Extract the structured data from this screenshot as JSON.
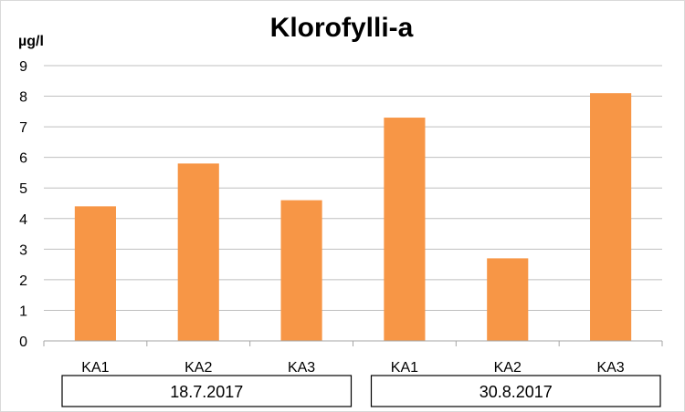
{
  "chart_data": {
    "type": "bar",
    "title": "Klorofylli-a",
    "ylabel": "µg/l",
    "xlabel": "",
    "ylim": [
      0,
      9
    ],
    "yticks": [
      "0",
      "1",
      "2",
      "3",
      "4",
      "5",
      "6",
      "7",
      "8",
      "9"
    ],
    "categories": [
      "KA1",
      "KA2",
      "KA3",
      "KA1",
      "KA2",
      "KA3"
    ],
    "groups": [
      {
        "label": "18.7.2017",
        "categories": [
          "KA1",
          "KA2",
          "KA3"
        ]
      },
      {
        "label": "30.8.2017",
        "categories": [
          "KA1",
          "KA2",
          "KA3"
        ]
      }
    ],
    "values": [
      4.4,
      5.8,
      4.6,
      7.3,
      2.7,
      8.1
    ],
    "bar_color": "#f79646",
    "grid": true,
    "legend": "none"
  }
}
